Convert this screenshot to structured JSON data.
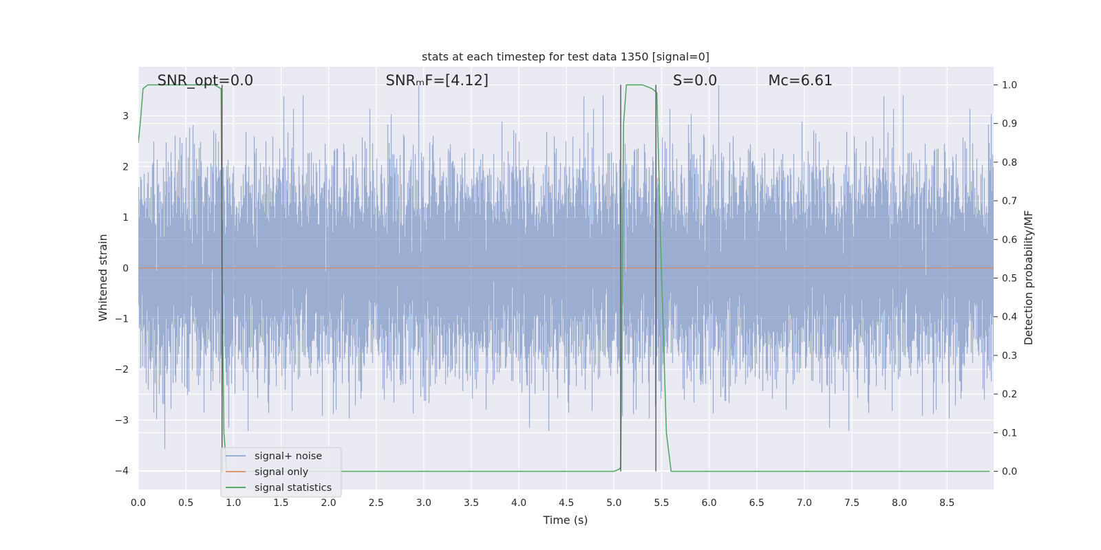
{
  "chart_data": {
    "type": "line",
    "title": "stats at each timestep for test data 1350 [signal=0]",
    "xlabel": "Time (s)",
    "ylabel_left": "Whitened strain",
    "ylabel_right": "Detection probability/MF",
    "xlim": [
      0.0,
      8.99
    ],
    "ylim_left": [
      -4.37,
      3.97
    ],
    "ylim_right": [
      -0.047,
      1.047
    ],
    "xticks": [
      "0.0",
      "0.5",
      "1.0",
      "1.5",
      "2.0",
      "2.5",
      "3.0",
      "3.5",
      "4.0",
      "4.5",
      "5.0",
      "5.5",
      "6.0",
      "6.5",
      "7.0",
      "7.5",
      "8.0",
      "8.5"
    ],
    "yticks_left": [
      "3",
      "2",
      "1",
      "0",
      "−1",
      "−2",
      "−3",
      "−4"
    ],
    "yticks_right": [
      "1.0",
      "0.9",
      "0.8",
      "0.7",
      "0.6",
      "0.5",
      "0.4",
      "0.3",
      "0.2",
      "0.1",
      "0.0"
    ],
    "grid": true,
    "legend_position": "lower-left",
    "annotations": [
      {
        "id": "snr-opt",
        "text": "SNR_opt=0.0",
        "x": 0.2
      },
      {
        "id": "snr-mf",
        "text": "SNRₘF=[4.12]",
        "x": 2.6
      },
      {
        "id": "s",
        "text": "S=0.0",
        "x": 5.62
      },
      {
        "id": "mc",
        "text": "Mᴄ=6.61",
        "x": 6.62
      }
    ],
    "series": [
      {
        "name": "signal+ noise",
        "axis": "left",
        "color": "#4c72b0",
        "description_values": {
          "sample_rate_hz": 2048,
          "approx_std": 1.0,
          "approx_range": [
            -3.9,
            3.6
          ]
        }
      },
      {
        "name": "signal only",
        "axis": "left",
        "color": "#dd8452",
        "x": [
          0.0,
          8.99
        ],
        "y": [
          0.0,
          0.0
        ]
      },
      {
        "name": "signal statistics",
        "axis": "right",
        "color": "#55a868",
        "x": [
          0.0,
          0.02,
          0.05,
          0.1,
          0.2,
          0.5,
          0.8,
          0.87,
          0.88,
          0.9,
          0.93,
          1.0,
          1.5,
          2.0,
          2.5,
          3.0,
          3.5,
          4.0,
          4.5,
          5.0,
          5.05,
          5.07,
          5.1,
          5.13,
          5.2,
          5.3,
          5.4,
          5.45,
          5.5,
          5.55,
          5.6,
          6.0,
          7.0,
          8.0,
          8.95
        ],
        "y": [
          0.85,
          0.9,
          0.99,
          1.0,
          1.0,
          1.0,
          1.0,
          0.99,
          0.5,
          0.1,
          0.0,
          0.0,
          0.0,
          0.0,
          0.0,
          0.0,
          0.0,
          0.0,
          0.0,
          0.0,
          0.005,
          0.01,
          0.9,
          1.0,
          1.0,
          1.0,
          0.99,
          0.98,
          0.5,
          0.1,
          0.0,
          0.0,
          0.0,
          0.0,
          0.0
        ]
      }
    ],
    "vertical_markers": [
      {
        "x": 0.88,
        "color": "#555555"
      },
      {
        "x": 5.07,
        "color": "#555555"
      },
      {
        "x": 5.44,
        "color": "#555555"
      }
    ]
  }
}
